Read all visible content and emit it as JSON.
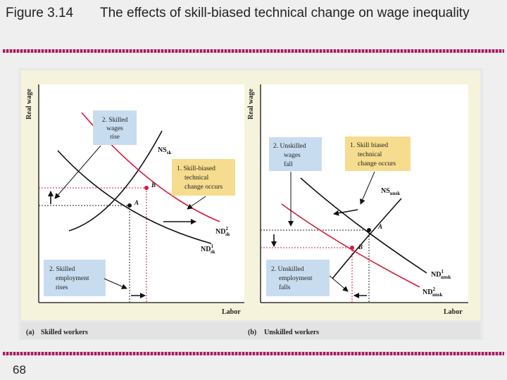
{
  "slide": {
    "figure_number": "Figure 3.14",
    "title": "The effects of skill-biased technical change on wage inequality",
    "page_number": "68"
  },
  "panel_a": {
    "y_axis_label": "Real wage",
    "x_axis_label": "Labor",
    "caption_letter": "(a)",
    "caption": "Skilled workers",
    "supply_label": "NS",
    "supply_sub": "sk",
    "demand1_label": "ND",
    "demand1_sup": "1",
    "demand1_sub": "sk",
    "demand2_label": "ND",
    "demand2_sup": "2",
    "demand2_sub": "sk",
    "point_a": "A",
    "point_b": "B",
    "box_wages": [
      "2. Skilled",
      "wages",
      "rise"
    ],
    "box_technical": [
      "1. Skill-biased",
      "technical",
      "change occurs"
    ],
    "box_employment": [
      "2. Skilled",
      "employment",
      "rises"
    ]
  },
  "panel_b": {
    "y_axis_label": "Real wage",
    "x_axis_label": "Labor",
    "caption_letter": "(b)",
    "caption": "Unskilled workers",
    "supply_label": "NS",
    "supply_sub": "unsk",
    "demand1_label": "ND",
    "demand1_sup": "1",
    "demand1_sub": "unsk",
    "demand2_label": "ND",
    "demand2_sup": "2",
    "demand2_sub": "unsk",
    "point_a": "A",
    "point_b": "B",
    "box_wages": [
      "2. Unskilled",
      "wages",
      "fall"
    ],
    "box_technical": [
      "1. Skill biased",
      "technical",
      "change occurs"
    ],
    "box_employment": [
      "2. Unskilled",
      "employment",
      "falls"
    ]
  },
  "colors": {
    "panel_bg": "#f6f3dc",
    "outer_bg": "#e8e8e8",
    "caption_bar": "#e3e3e3",
    "plot_area": "#ffffff",
    "supply_curve": "#111111",
    "old_demand": "#111111",
    "new_demand": "#d41a3c",
    "blue_box": "#c8dcef",
    "yellow_box": "#f6dc8e",
    "rule": "#a0205e"
  }
}
